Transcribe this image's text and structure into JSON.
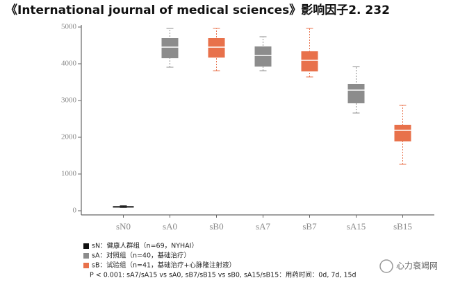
{
  "chart_data": {
    "type": "box",
    "title": "《International journal of medical sciences》影响因子2. 232",
    "categories": [
      "sN0",
      "sA0",
      "sB0",
      "sA7",
      "sB7",
      "sA15",
      "sB15"
    ],
    "min": [
      90,
      3906,
      3811,
      3811,
      3642,
      2660,
      1264
    ],
    "q1": [
      100,
      4151,
      4170,
      3925,
      3792,
      2925,
      1887
    ],
    "median": [
      110,
      4453,
      4453,
      4226,
      4094,
      3283,
      2189
    ],
    "q3": [
      125,
      4698,
      4698,
      4472,
      4340,
      3453,
      2340
    ],
    "max": [
      135,
      4962,
      4962,
      4736,
      4962,
      3925,
      2868
    ],
    "colors": [
      "#111111",
      "#8c8c8c",
      "#e8714b",
      "#8c8c8c",
      "#e8714b",
      "#8c8c8c",
      "#e8714b"
    ],
    "ylim": [
      0,
      5000
    ],
    "yticks": [
      0,
      1000,
      2000,
      3000,
      4000,
      5000
    ],
    "legend": [
      {
        "label": "sN：健康人群组（n=69，NYHAI）",
        "color": "#111111"
      },
      {
        "label": "sA：对照组（n=40，基础治疗）",
        "color": "#8c8c8c"
      },
      {
        "label": "sB：试验组（n=41，基础治疗+心脉隆注射液）",
        "color": "#e8714b"
      }
    ],
    "note": "P < 0.001: sA7/sA15 vs sA0, sB7/sB15 vs sB0, sA15/sB15：用药时间：0d, 7d, 15d",
    "watermark": "心力衰竭网"
  }
}
